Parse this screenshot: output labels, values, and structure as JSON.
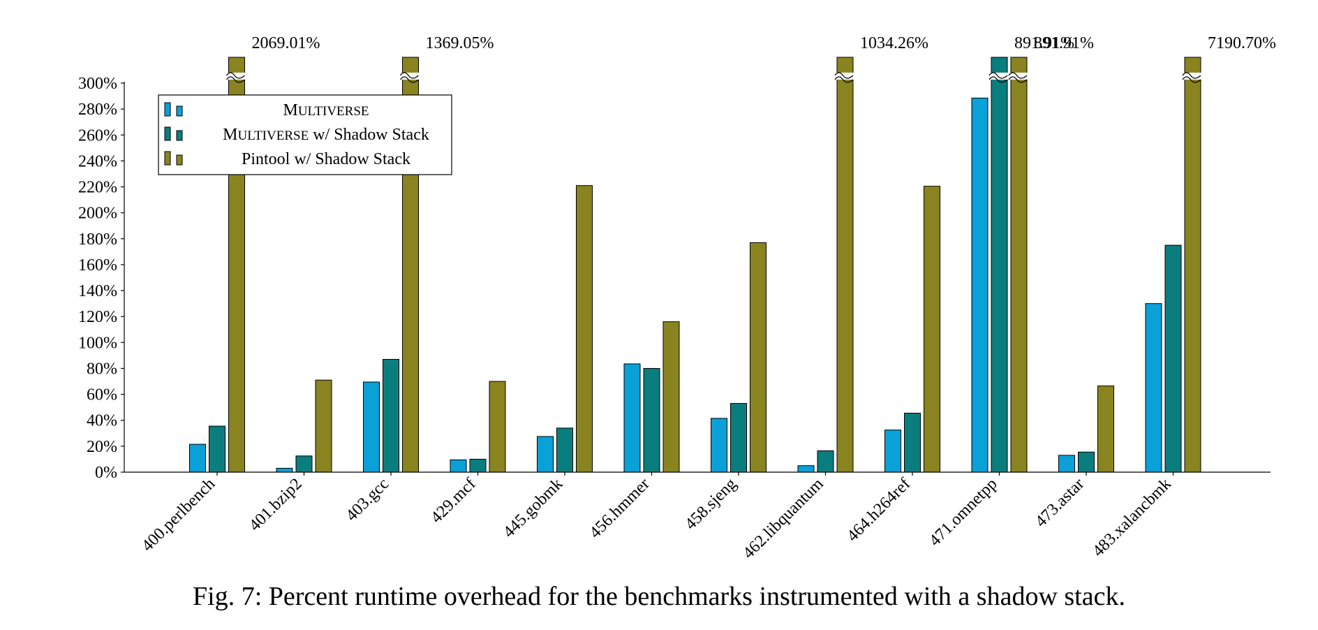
{
  "chart_data": {
    "type": "bar",
    "title": "",
    "xlabel": "",
    "ylabel": "",
    "ylim": [
      0,
      300
    ],
    "yticks": [
      0,
      20,
      40,
      60,
      80,
      100,
      120,
      140,
      160,
      180,
      200,
      220,
      240,
      260,
      280,
      300
    ],
    "ytick_suffix": "%",
    "grid": false,
    "legend_position": "top-left",
    "axis_break": true,
    "categories": [
      "400.perlbench",
      "401.bzip2",
      "403.gcc",
      "429.mcf",
      "445.gobmk",
      "456.hmmer",
      "458.sjeng",
      "462.libquantum",
      "464.h264ref",
      "471.omnetpp",
      "473.astar",
      "483.xalancbmk"
    ],
    "series": [
      {
        "name": "Multiverse",
        "legend_parts": [
          "M",
          "ULTIVERSE"
        ],
        "color": "#0aa0d8",
        "values": [
          21.5,
          3.0,
          69.5,
          9.5,
          27.5,
          83.5,
          41.5,
          5.0,
          32.5,
          288.5,
          13.0,
          130.0
        ]
      },
      {
        "name": "Multiverse w/ Shadow Stack",
        "legend_parts": [
          "M",
          "ULTIVERSE",
          " w/ Shadow Stack"
        ],
        "color": "#0a7e7e",
        "values": [
          35.5,
          12.5,
          87.0,
          10.0,
          34.0,
          80.0,
          53.0,
          16.5,
          45.5,
          302.0,
          15.5,
          175.0
        ]
      },
      {
        "name": "Pintool w/ Shadow Stack",
        "color": "#8a8420",
        "values": [
          2069.01,
          71.0,
          1369.05,
          70.0,
          221.0,
          116.0,
          177.0,
          1034.26,
          220.5,
          891.91,
          66.5,
          7190.7
        ]
      }
    ],
    "overflow_labels": [
      "2069.01%",
      "",
      "1369.05%",
      "",
      "",
      "",
      "",
      "1034.26%",
      "",
      "891.91%",
      "",
      "7190.70%"
    ]
  },
  "caption": "Fig. 7: Percent runtime overhead for the benchmarks instrumented with a shadow stack."
}
